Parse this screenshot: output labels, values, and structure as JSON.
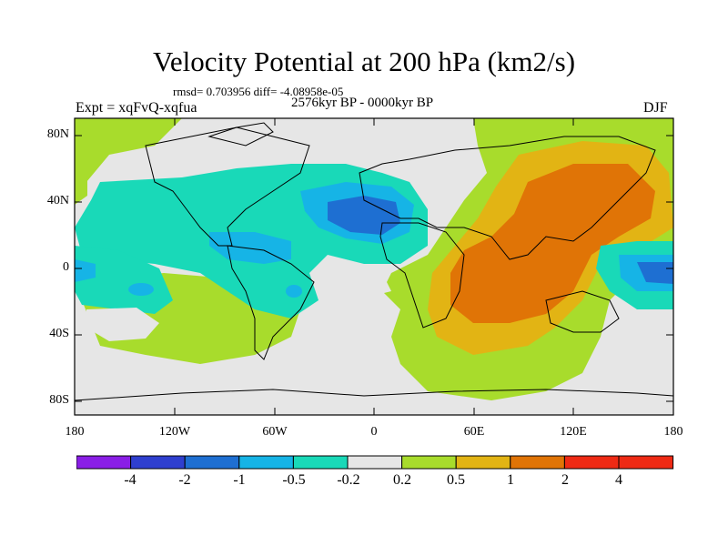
{
  "title": "Velocity Potential at 200 hPa (km2/s)",
  "stats": "rmsd= 0.703956 diff= -4.08958e-05",
  "experiment": "Expt = xqFvQ-xqfua",
  "period": "2576kyr BP - 0000kyr BP",
  "season": "DJF",
  "lat_ticks": [
    "80N",
    "40N",
    "0",
    "40S",
    "80S"
  ],
  "lon_ticks": [
    "180",
    "120W",
    "60W",
    "0",
    "60E",
    "120E",
    "180"
  ],
  "colorbar": {
    "labels": [
      "-4",
      "-2",
      "-1",
      "-0.5",
      "-0.2",
      "0.2",
      "0.5",
      "1",
      "2",
      "4"
    ],
    "colors": [
      "#8a1ee6",
      "#2f3fcf",
      "#1e6fd2",
      "#16b4e6",
      "#19d9b8",
      "#e6e6e6",
      "#a8dc2c",
      "#e2b414",
      "#e07406",
      "#ee2a14"
    ]
  }
}
